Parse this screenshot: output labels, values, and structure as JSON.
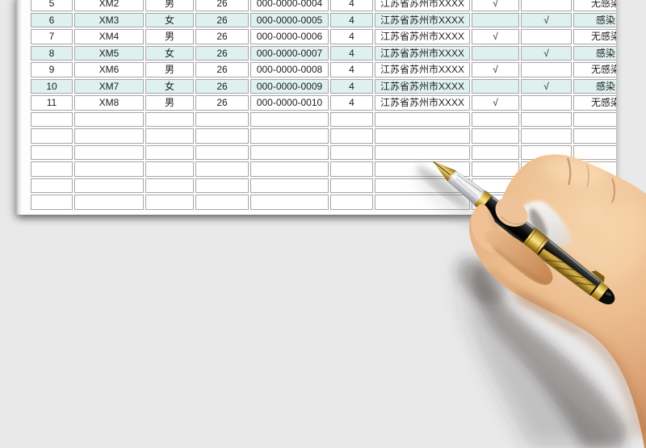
{
  "colors": {
    "background": "#e9e9e9",
    "paper": "#fdfdfd",
    "cell_border": "#a6a6a6",
    "row_highlight": "#dff1ef",
    "pen_gold": "#d2a63c",
    "pen_body": "#0d0d0b",
    "skin": "#ecbd8e"
  },
  "table": {
    "column_keys": [
      "no",
      "name",
      "gender",
      "age",
      "phone",
      "count",
      "address",
      "check_a",
      "check_b",
      "status"
    ],
    "checkmark_glyph": "√",
    "rows": [
      {
        "no": "5",
        "name": "XM2",
        "gender": "男",
        "age": "26",
        "phone": "000-0000-0004",
        "count": "4",
        "address": "江苏省苏州市XXXX",
        "check_a": "√",
        "check_b": "",
        "status": "无感染",
        "highlighted": false
      },
      {
        "no": "6",
        "name": "XM3",
        "gender": "女",
        "age": "26",
        "phone": "000-0000-0005",
        "count": "4",
        "address": "江苏省苏州市XXXX",
        "check_a": "",
        "check_b": "√",
        "status": "感染",
        "highlighted": true
      },
      {
        "no": "7",
        "name": "XM4",
        "gender": "男",
        "age": "26",
        "phone": "000-0000-0006",
        "count": "4",
        "address": "江苏省苏州市XXXX",
        "check_a": "√",
        "check_b": "",
        "status": "无感染",
        "highlighted": false
      },
      {
        "no": "8",
        "name": "XM5",
        "gender": "女",
        "age": "26",
        "phone": "000-0000-0007",
        "count": "4",
        "address": "江苏省苏州市XXXX",
        "check_a": "",
        "check_b": "√",
        "status": "感染",
        "highlighted": true
      },
      {
        "no": "9",
        "name": "XM6",
        "gender": "男",
        "age": "26",
        "phone": "000-0000-0008",
        "count": "4",
        "address": "江苏省苏州市XXXX",
        "check_a": "√",
        "check_b": "",
        "status": "无感染",
        "highlighted": false
      },
      {
        "no": "10",
        "name": "XM7",
        "gender": "女",
        "age": "26",
        "phone": "000-0000-0009",
        "count": "4",
        "address": "江苏省苏州市XXXX",
        "check_a": "",
        "check_b": "√",
        "status": "感染",
        "highlighted": true
      },
      {
        "no": "11",
        "name": "XM8",
        "gender": "男",
        "age": "26",
        "phone": "000-0000-0010",
        "count": "4",
        "address": "江苏省苏州市XXXX",
        "check_a": "√",
        "check_b": "",
        "status": "无感染",
        "highlighted": false
      }
    ],
    "empty_row_count": 6
  }
}
